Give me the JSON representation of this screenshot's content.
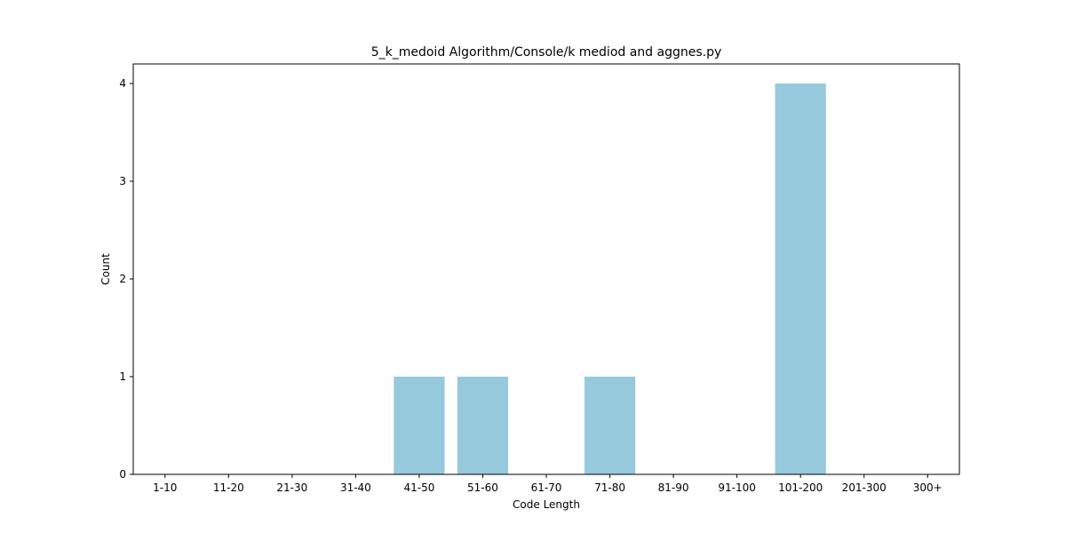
{
  "chart_data": {
    "type": "bar",
    "title": "5_k_medoid Algorithm/Console/k mediod and aggnes.py",
    "xlabel": "Code Length",
    "ylabel": "Count",
    "categories": [
      "1-10",
      "11-20",
      "21-30",
      "31-40",
      "41-50",
      "51-60",
      "61-70",
      "71-80",
      "81-90",
      "91-100",
      "101-200",
      "201-300",
      "300+"
    ],
    "values": [
      0,
      0,
      0,
      0,
      1,
      1,
      0,
      1,
      0,
      0,
      4,
      0,
      0
    ],
    "yticks": [
      "0",
      "1",
      "2",
      "3",
      "4"
    ],
    "ylim": [
      0,
      4.2
    ],
    "grid": false,
    "bar_color": "#96c9dc"
  }
}
